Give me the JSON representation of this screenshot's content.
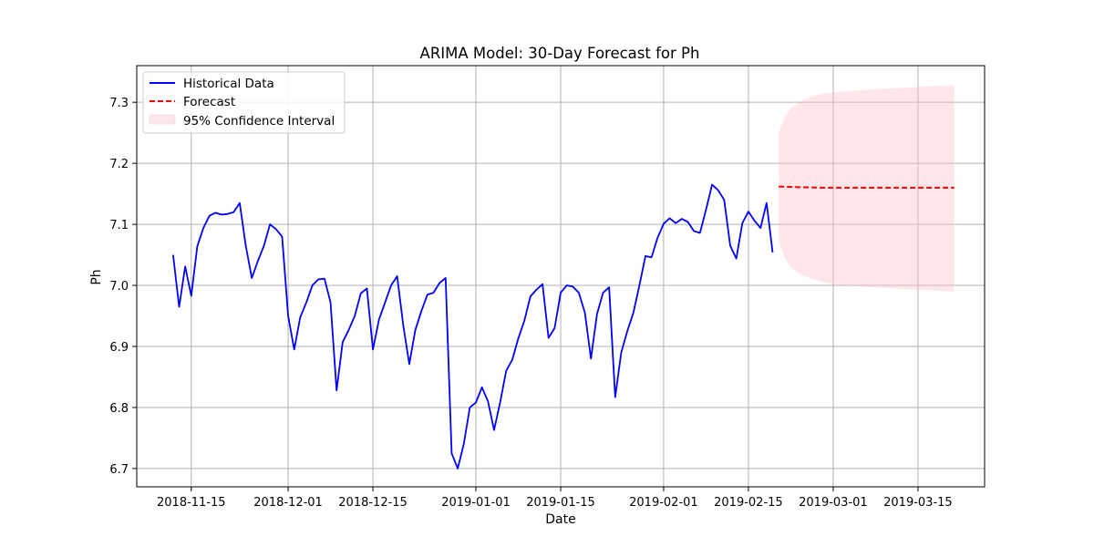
{
  "chart_data": {
    "type": "line",
    "title": "ARIMA Model: 30-Day Forecast for Ph",
    "xlabel": "Date",
    "ylabel": "Ph",
    "xlim": [
      "2018-11-06",
      "2019-03-26"
    ],
    "ylim": [
      6.67,
      7.36
    ],
    "grid": true,
    "legend_position": "top-left",
    "x_ticks": [
      "2018-11-15",
      "2018-12-01",
      "2018-12-15",
      "2019-01-01",
      "2019-01-15",
      "2019-02-01",
      "2019-02-15",
      "2019-03-01",
      "2019-03-15"
    ],
    "y_ticks": [
      6.7,
      6.8,
      6.9,
      7.0,
      7.1,
      7.2,
      7.3
    ],
    "colors": {
      "historical": "#0000ff",
      "forecast": "#ff0000",
      "confidence": "#ffc0cb"
    },
    "legend": [
      "Historical Data",
      "Forecast",
      "95% Confidence Interval"
    ],
    "series": [
      {
        "name": "Historical Data",
        "style": "solid",
        "points": [
          [
            "2018-11-12",
            7.05
          ],
          [
            "2018-11-13",
            6.965
          ],
          [
            "2018-11-14",
            7.031
          ],
          [
            "2018-11-15",
            6.983
          ],
          [
            "2018-11-16",
            7.064
          ],
          [
            "2018-11-17",
            7.094
          ],
          [
            "2018-11-18",
            7.114
          ],
          [
            "2018-11-19",
            7.119
          ],
          [
            "2018-11-20",
            7.116
          ],
          [
            "2018-11-21",
            7.117
          ],
          [
            "2018-11-22",
            7.12
          ],
          [
            "2018-11-23",
            7.135
          ],
          [
            "2018-11-24",
            7.065
          ],
          [
            "2018-11-25",
            7.012
          ],
          [
            "2018-11-26",
            7.04
          ],
          [
            "2018-11-27",
            7.065
          ],
          [
            "2018-11-28",
            7.1
          ],
          [
            "2018-11-29",
            7.092
          ],
          [
            "2018-11-30",
            7.08
          ],
          [
            "2018-12-01",
            6.95
          ],
          [
            "2018-12-02",
            6.895
          ],
          [
            "2018-12-03",
            6.948
          ],
          [
            "2018-12-04",
            6.972
          ],
          [
            "2018-12-05",
            7.0
          ],
          [
            "2018-12-06",
            7.01
          ],
          [
            "2018-12-07",
            7.011
          ],
          [
            "2018-12-08",
            6.972
          ],
          [
            "2018-12-09",
            6.828
          ],
          [
            "2018-12-10",
            6.907
          ],
          [
            "2018-12-11",
            6.927
          ],
          [
            "2018-12-12",
            6.95
          ],
          [
            "2018-12-13",
            6.987
          ],
          [
            "2018-12-14",
            6.995
          ],
          [
            "2018-12-15",
            6.895
          ],
          [
            "2018-12-16",
            6.944
          ],
          [
            "2018-12-17",
            6.972
          ],
          [
            "2018-12-18",
            7.0
          ],
          [
            "2018-12-19",
            7.015
          ],
          [
            "2018-12-20",
            6.935
          ],
          [
            "2018-12-21",
            6.871
          ],
          [
            "2018-12-22",
            6.927
          ],
          [
            "2018-12-23",
            6.958
          ],
          [
            "2018-12-24",
            6.985
          ],
          [
            "2018-12-25",
            6.988
          ],
          [
            "2018-12-26",
            7.004
          ],
          [
            "2018-12-27",
            7.012
          ],
          [
            "2018-12-28",
            6.725
          ],
          [
            "2018-12-29",
            6.7
          ],
          [
            "2018-12-30",
            6.74
          ],
          [
            "2018-12-31",
            6.8
          ],
          [
            "2019-01-01",
            6.808
          ],
          [
            "2019-01-02",
            6.833
          ],
          [
            "2019-01-03",
            6.81
          ],
          [
            "2019-01-04",
            6.763
          ],
          [
            "2019-01-05",
            6.808
          ],
          [
            "2019-01-06",
            6.86
          ],
          [
            "2019-01-07",
            6.878
          ],
          [
            "2019-01-08",
            6.913
          ],
          [
            "2019-01-09",
            6.942
          ],
          [
            "2019-01-10",
            6.982
          ],
          [
            "2019-01-11",
            6.993
          ],
          [
            "2019-01-12",
            7.002
          ],
          [
            "2019-01-13",
            6.914
          ],
          [
            "2019-01-14",
            6.93
          ],
          [
            "2019-01-15",
            6.988
          ],
          [
            "2019-01-16",
            7.0
          ],
          [
            "2019-01-17",
            6.998
          ],
          [
            "2019-01-18",
            6.988
          ],
          [
            "2019-01-19",
            6.955
          ],
          [
            "2019-01-20",
            6.88
          ],
          [
            "2019-01-21",
            6.953
          ],
          [
            "2019-01-22",
            6.988
          ],
          [
            "2019-01-23",
            6.997
          ],
          [
            "2019-01-24",
            6.817
          ],
          [
            "2019-01-25",
            6.89
          ],
          [
            "2019-01-26",
            6.925
          ],
          [
            "2019-01-27",
            6.955
          ],
          [
            "2019-01-28",
            7.0
          ],
          [
            "2019-01-29",
            7.048
          ],
          [
            "2019-01-30",
            7.046
          ],
          [
            "2019-01-31",
            7.078
          ],
          [
            "2019-02-01",
            7.101
          ],
          [
            "2019-02-02",
            7.11
          ],
          [
            "2019-02-03",
            7.102
          ],
          [
            "2019-02-04",
            7.109
          ],
          [
            "2019-02-05",
            7.104
          ],
          [
            "2019-02-06",
            7.089
          ],
          [
            "2019-02-07",
            7.086
          ],
          [
            "2019-02-08",
            7.124
          ],
          [
            "2019-02-09",
            7.165
          ],
          [
            "2019-02-10",
            7.156
          ],
          [
            "2019-02-11",
            7.14
          ],
          [
            "2019-02-12",
            7.065
          ],
          [
            "2019-02-13",
            7.044
          ],
          [
            "2019-02-14",
            7.102
          ],
          [
            "2019-02-15",
            7.121
          ],
          [
            "2019-02-16",
            7.106
          ],
          [
            "2019-02-17",
            7.094
          ],
          [
            "2019-02-18",
            7.135
          ],
          [
            "2019-02-19",
            7.054
          ]
        ]
      },
      {
        "name": "Forecast",
        "style": "dashed",
        "points": [
          [
            "2019-02-20",
            7.162
          ],
          [
            "2019-02-23",
            7.161
          ],
          [
            "2019-02-27",
            7.16
          ],
          [
            "2019-03-03",
            7.16
          ],
          [
            "2019-03-10",
            7.16
          ],
          [
            "2019-03-21",
            7.16
          ]
        ]
      }
    ],
    "confidence_interval": {
      "name": "95% Confidence Interval",
      "upper": [
        [
          "2019-02-20",
          7.25
        ],
        [
          "2019-02-21",
          7.276
        ],
        [
          "2019-02-22",
          7.29
        ],
        [
          "2019-02-23",
          7.298
        ],
        [
          "2019-02-24",
          7.304
        ],
        [
          "2019-02-26",
          7.311
        ],
        [
          "2019-02-28",
          7.315
        ],
        [
          "2019-03-03",
          7.318
        ],
        [
          "2019-03-07",
          7.321
        ],
        [
          "2019-03-13",
          7.324
        ],
        [
          "2019-03-21",
          7.328
        ]
      ],
      "lower": [
        [
          "2019-02-20",
          7.072
        ],
        [
          "2019-02-21",
          7.045
        ],
        [
          "2019-02-22",
          7.03
        ],
        [
          "2019-02-23",
          7.022
        ],
        [
          "2019-02-24",
          7.016
        ],
        [
          "2019-02-26",
          7.009
        ],
        [
          "2019-02-28",
          7.004
        ],
        [
          "2019-03-03",
          7.0
        ],
        [
          "2019-03-07",
          6.997
        ],
        [
          "2019-03-13",
          6.994
        ],
        [
          "2019-03-21",
          6.99
        ]
      ]
    }
  }
}
